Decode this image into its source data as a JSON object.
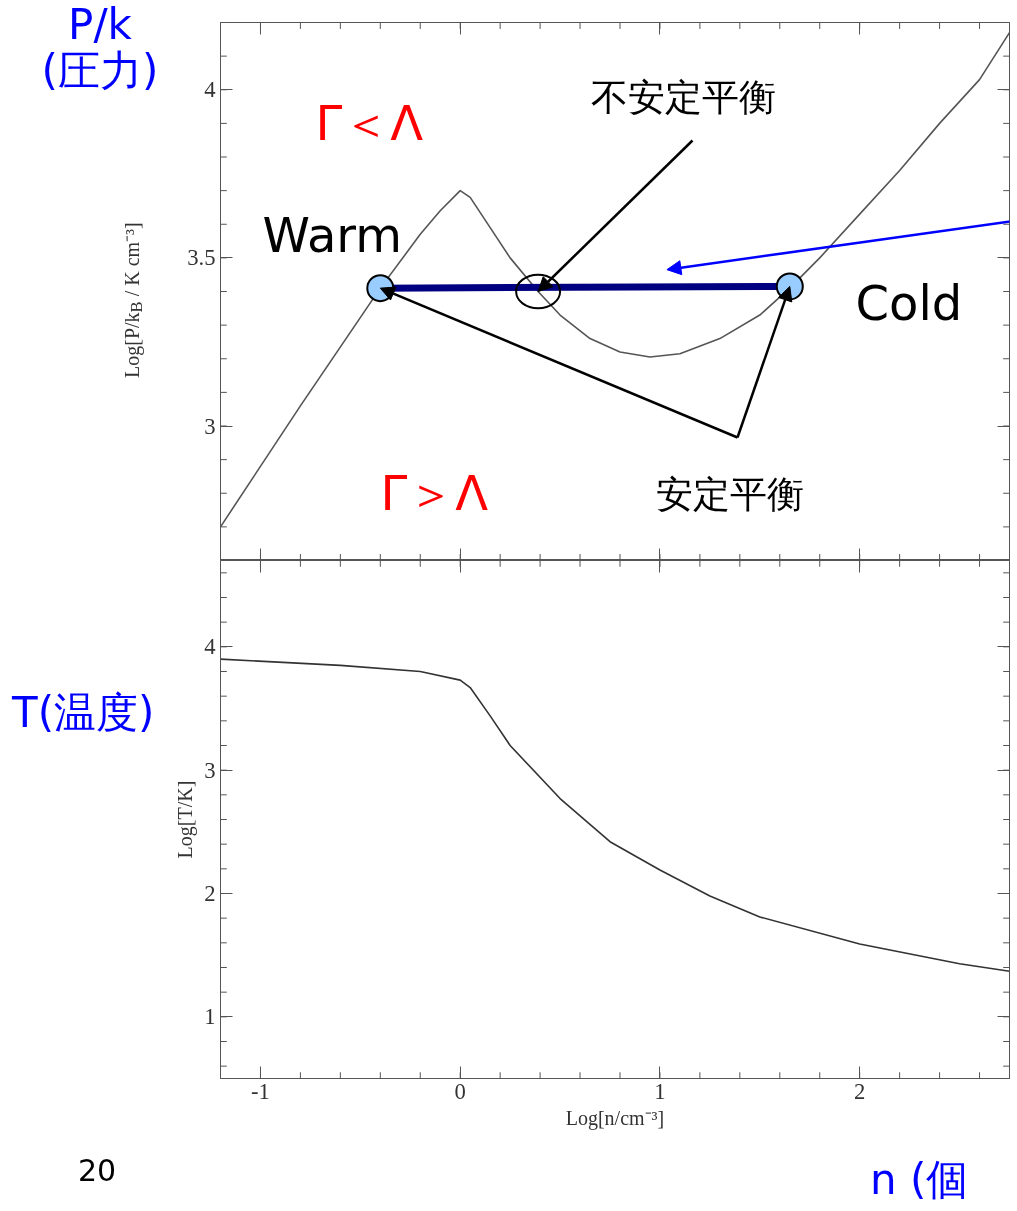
{
  "chart_data": [
    {
      "type": "line",
      "ylabel": "Log[P/k$_{B}$ / K cm⁻³]",
      "xlim": [
        -1.2,
        2.75
      ],
      "ylim": [
        2.6,
        4.2
      ],
      "tick_labels": "y",
      "xticks": [
        {
          "value": -1,
          "label": null
        },
        {
          "value": 0,
          "label": null
        },
        {
          "value": 1,
          "label": null
        },
        {
          "value": 2,
          "label": null
        }
      ],
      "yticks": [
        3,
        3.5,
        4
      ],
      "series": [
        {
          "type": "line",
          "color": "#555555",
          "x": [
            -1.2,
            -0.8,
            -0.4,
            -0.2,
            -0.1,
            0,
            0.05,
            0.15,
            0.25,
            0.39,
            0.5,
            0.65,
            0.8,
            0.95,
            1.1,
            1.3,
            1.5,
            1.65,
            1.8,
            2.0,
            2.2,
            2.4,
            2.6,
            2.75
          ],
          "values": [
            2.7,
            3.06,
            3.41,
            3.57,
            3.64,
            3.7,
            3.68,
            3.59,
            3.5,
            3.4,
            3.33,
            3.26,
            3.22,
            3.205,
            3.215,
            3.26,
            3.33,
            3.41,
            3.5,
            3.63,
            3.76,
            3.9,
            4.03,
            4.17
          ]
        },
        {
          "type": "line",
          "color": "#000080",
          "x": [
            -0.4,
            1.65
          ],
          "values": [
            3.41,
            3.415
          ]
        },
        {
          "type": "scatter",
          "color": "#99ccff",
          "marker": "circle",
          "x": [
            -0.4,
            1.65
          ],
          "values": [
            3.41,
            3.415
          ]
        }
      ],
      "annotations": [
        "Γ＜Λ",
        "Γ＞Λ",
        "Warm",
        "Cold",
        {
          "text": "不安定平衡",
          "x": 0.39,
          "y": 3.4
        },
        {
          "text": "安定平衡",
          "x": -0.4,
          "y": 3.41
        },
        "P/k\n(圧力)"
      ]
    },
    {
      "type": "line",
      "xlabel": "Log[n/cm⁻³]",
      "ylabel": "Log[T/K]",
      "xlim": [
        -1.2,
        2.75
      ],
      "ylim": [
        0.5,
        4.7
      ],
      "xticks": [
        -1,
        0,
        1,
        2
      ],
      "yticks": [
        1,
        2,
        3,
        4
      ],
      "series": [
        {
          "type": "line",
          "color": "#333333",
          "x": [
            -1.2,
            -0.6,
            -0.2,
            0,
            0.05,
            0.15,
            0.25,
            0.5,
            0.75,
            1.0,
            1.25,
            1.5,
            2.0,
            2.5,
            2.75
          ],
          "values": [
            3.9,
            3.85,
            3.8,
            3.73,
            3.67,
            3.44,
            3.2,
            2.77,
            2.42,
            2.19,
            1.98,
            1.81,
            1.59,
            1.43,
            1.37
          ]
        }
      ],
      "annotations": [
        "T(温度)",
        "20",
        "n (個"
      ]
    }
  ]
}
